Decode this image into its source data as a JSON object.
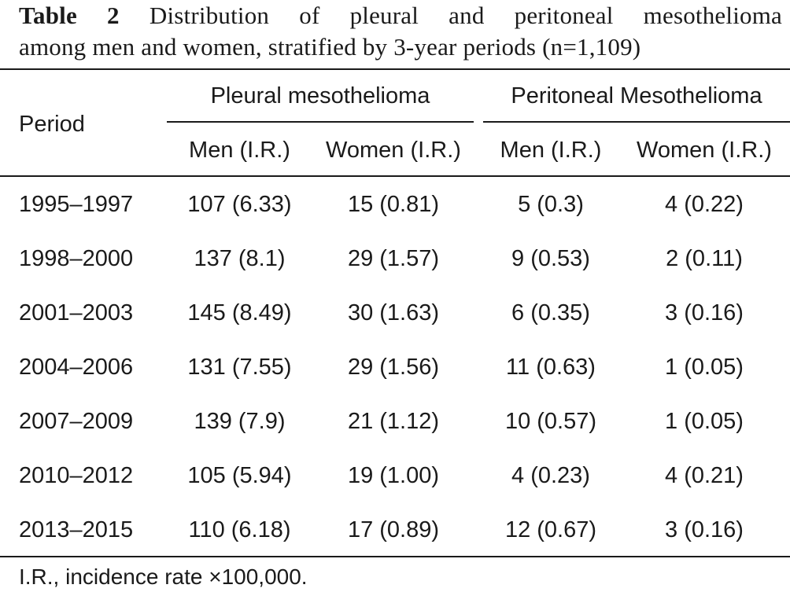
{
  "caption": {
    "label": "Table 2",
    "line1_text": "Distribution of pleural and peritoneal mesothelioma",
    "line2_text": "among men and women, stratified by 3-year periods (n=1,109)"
  },
  "table": {
    "period_header": "Period",
    "groups": [
      {
        "label": "Pleural mesothelioma"
      },
      {
        "label": "Peritoneal Mesothelioma"
      }
    ],
    "subheaders": [
      "Men (I.R.)",
      "Women (I.R.)",
      "Men (I.R.)",
      "Women (I.R.)"
    ],
    "rows": [
      {
        "period": "1995–1997",
        "pleural_men": "107 (6.33)",
        "pleural_women": "15 (0.81)",
        "peritoneal_men": "5 (0.3)",
        "peritoneal_women": "4 (0.22)"
      },
      {
        "period": "1998–2000",
        "pleural_men": "137 (8.1)",
        "pleural_women": "29 (1.57)",
        "peritoneal_men": "9 (0.53)",
        "peritoneal_women": "2 (0.11)"
      },
      {
        "period": "2001–2003",
        "pleural_men": "145 (8.49)",
        "pleural_women": "30 (1.63)",
        "peritoneal_men": "6 (0.35)",
        "peritoneal_women": "3 (0.16)"
      },
      {
        "period": "2004–2006",
        "pleural_men": "131 (7.55)",
        "pleural_women": "29 (1.56)",
        "peritoneal_men": "11 (0.63)",
        "peritoneal_women": "1 (0.05)"
      },
      {
        "period": "2007–2009",
        "pleural_men": "139 (7.9)",
        "pleural_women": "21 (1.12)",
        "peritoneal_men": "10 (0.57)",
        "peritoneal_women": "1 (0.05)"
      },
      {
        "period": "2010–2012",
        "pleural_men": "105 (5.94)",
        "pleural_women": "19 (1.00)",
        "peritoneal_men": "4 (0.23)",
        "peritoneal_women": "4 (0.21)"
      },
      {
        "period": "2013–2015",
        "pleural_men": "110 (6.18)",
        "pleural_women": "17 (0.89)",
        "peritoneal_men": "12 (0.67)",
        "peritoneal_women": "3 (0.16)"
      }
    ]
  },
  "footnote": "I.R., incidence rate ×100,000."
}
